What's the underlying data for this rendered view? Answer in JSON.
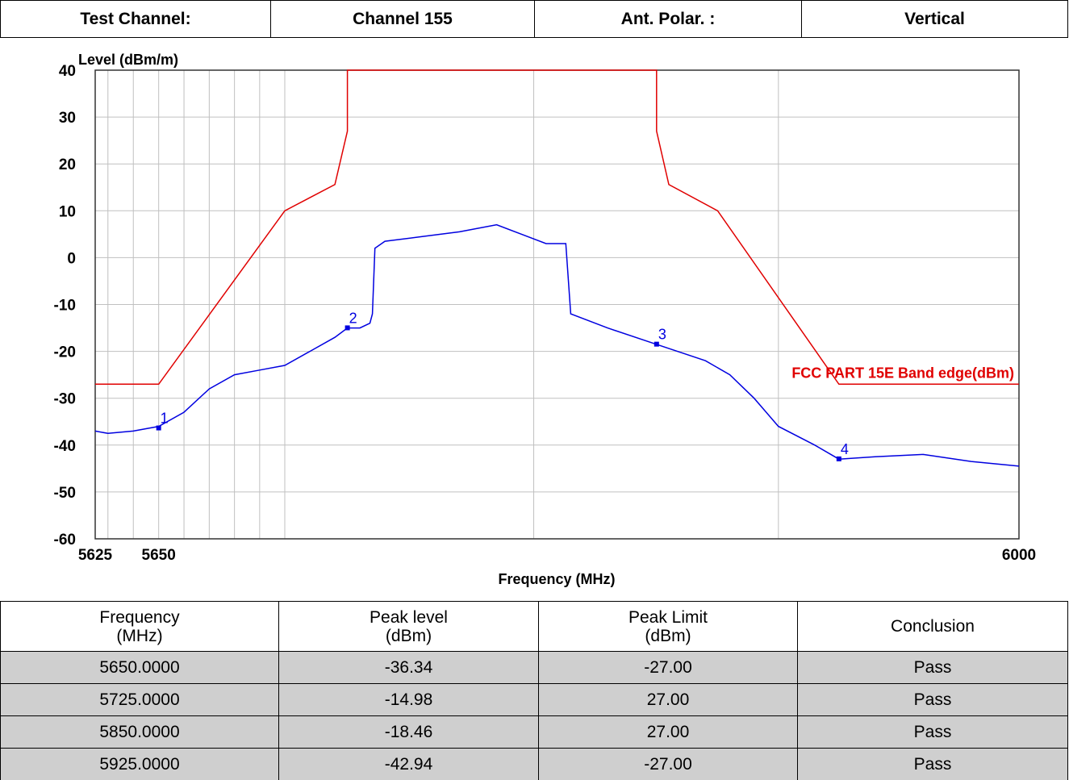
{
  "header": {
    "cells": [
      "Test Channel:",
      "Channel 155",
      "Ant. Polar. :",
      "Vertical"
    ]
  },
  "chart_data": {
    "type": "line",
    "ylabel": "Level (dBm/m)",
    "xlabel": "Frequency (MHz)",
    "xlim": [
      5625,
      6000
    ],
    "ylim": [
      -60,
      40
    ],
    "xscale": "log",
    "grid": true,
    "xticks": [
      5625,
      {
        "value": 5630,
        "label": null
      },
      {
        "value": 5640,
        "label": null
      },
      5650,
      {
        "value": 5660,
        "label": null
      },
      {
        "value": 5670,
        "label": null
      },
      {
        "value": 5680,
        "label": null
      },
      {
        "value": 5690,
        "label": null
      },
      {
        "value": 5700,
        "label": null
      },
      {
        "value": 5800,
        "label": null
      },
      {
        "value": 5900,
        "label": null
      },
      6000
    ],
    "yticks": [
      -60,
      -50,
      -40,
      -30,
      -20,
      -10,
      0,
      10,
      20,
      30,
      40
    ],
    "series": [
      {
        "name": "FCC PART 15E Band edge(dBm)",
        "color": "#e00000",
        "x": [
          5625,
          5650,
          5700,
          5720,
          5725,
          5725,
          5850,
          5850,
          5855,
          5875,
          5925,
          6000
        ],
        "values": [
          -27,
          -27,
          10,
          15.6,
          27,
          40,
          40,
          27,
          15.6,
          10,
          -27,
          -27
        ]
      },
      {
        "name": null,
        "color": "#0000e0",
        "x": [
          5625,
          5630,
          5640,
          5650,
          5660,
          5670,
          5680,
          5690,
          5700,
          5710,
          5720,
          5725,
          5730,
          5734,
          5735,
          5736,
          5740,
          5755,
          5770,
          5785,
          5795,
          5805,
          5813,
          5815,
          5830,
          5850,
          5870,
          5880,
          5890,
          5900,
          5915,
          5925,
          5940,
          5960,
          5980,
          6000
        ],
        "values": [
          -37,
          -37.5,
          -37,
          -36,
          -33,
          -28,
          -25,
          -24,
          -23,
          -20,
          -17,
          -15,
          -15,
          -14,
          -12,
          2,
          3.5,
          4.5,
          5.5,
          7,
          5,
          3,
          3,
          -12,
          -15,
          -18.5,
          -22,
          -25,
          -30,
          -36,
          -40,
          -43,
          -42.5,
          -42,
          -43.5,
          -44.5
        ]
      }
    ],
    "markers": [
      {
        "label": "1",
        "x": 5650,
        "y": -36.34
      },
      {
        "label": "2",
        "x": 5725,
        "y": -14.98
      },
      {
        "label": "3",
        "x": 5850,
        "y": -18.46
      },
      {
        "label": "4",
        "x": 5925,
        "y": -42.94
      }
    ]
  },
  "table": {
    "columns": [
      "Frequency\n(MHz)",
      "Peak level\n(dBm)",
      "Peak Limit\n(dBm)",
      "Conclusion"
    ],
    "rows": [
      [
        "5650.0000",
        "-36.34",
        "-27.00",
        "Pass"
      ],
      [
        "5725.0000",
        "-14.98",
        "27.00",
        "Pass"
      ],
      [
        "5850.0000",
        "-18.46",
        "27.00",
        "Pass"
      ],
      [
        "5925.0000",
        "-42.94",
        "-27.00",
        "Pass"
      ]
    ]
  }
}
